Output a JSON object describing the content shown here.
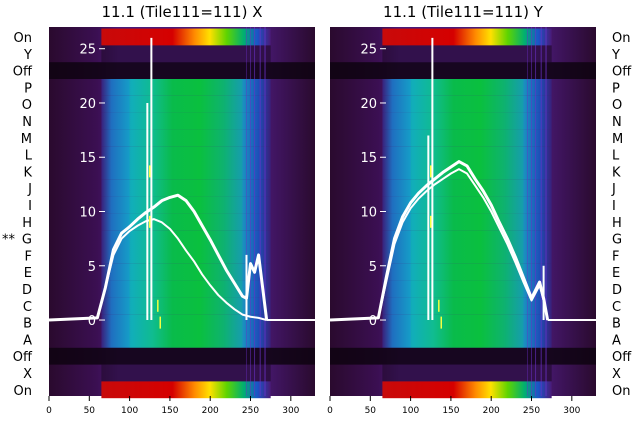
{
  "chart_data": [
    {
      "type": "heatmap",
      "title": "11.1 (Tile111=111) X",
      "row_labels": [
        "On",
        "Y",
        "Off",
        "P",
        "O",
        "N",
        "M",
        "L",
        "K",
        "J",
        "I",
        "H",
        "G",
        "F",
        "E",
        "D",
        "C",
        "B",
        "A",
        "Off",
        "X",
        "On"
      ],
      "marked_row": {
        "label": "G",
        "marker": "**"
      },
      "xlim": [
        0,
        330
      ],
      "x_ticks": [
        0,
        50,
        100,
        150,
        200,
        250,
        300
      ],
      "ylim": [
        -7,
        27
      ],
      "y_ticks": [
        0,
        5,
        10,
        15,
        20,
        25
      ],
      "colormap": "spectral (purple-blue-green-yellow-red)",
      "profile_color": "#ffffff",
      "series": [
        {
          "x": [
            0,
            60,
            70,
            80,
            90,
            100,
            110,
            120,
            130,
            140,
            150,
            160,
            170,
            180,
            190,
            200,
            210,
            220,
            230,
            240,
            245,
            250,
            255,
            260,
            265,
            270
          ],
          "y": [
            0,
            0.2,
            3,
            6.5,
            8,
            8.6,
            9.3,
            9.9,
            10.4,
            11,
            11.3,
            11.5,
            11,
            10,
            8.7,
            7.4,
            6,
            4.6,
            3.4,
            2.2,
            2,
            5.2,
            4.4,
            6,
            3,
            0
          ]
        },
        {
          "x": [
            0,
            60,
            70,
            80,
            90,
            100,
            110,
            120,
            130,
            140,
            150,
            160,
            170,
            180,
            190,
            200,
            210,
            220,
            230,
            240,
            250,
            260,
            270
          ],
          "y": [
            0,
            0.2,
            3,
            6,
            7.5,
            8.2,
            8.7,
            9.1,
            9.3,
            9,
            8.4,
            7.5,
            6.4,
            5.4,
            4.2,
            3.2,
            2.3,
            1.6,
            1,
            0.5,
            0.3,
            0.2,
            0
          ]
        }
      ],
      "spikes": [
        {
          "x": 122,
          "y": 20
        },
        {
          "x": 127,
          "y": 26
        },
        {
          "x": 245,
          "y": 6
        }
      ]
    },
    {
      "type": "heatmap",
      "title": "11.1 (Tile111=111) Y",
      "row_labels": [
        "On",
        "Y",
        "Off",
        "P",
        "O",
        "N",
        "M",
        "L",
        "K",
        "J",
        "I",
        "H",
        "G",
        "F",
        "E",
        "D",
        "C",
        "B",
        "A",
        "Off",
        "X",
        "On"
      ],
      "xlim": [
        0,
        330
      ],
      "x_ticks": [
        0,
        50,
        100,
        150,
        200,
        250,
        300
      ],
      "ylim": [
        -7,
        27
      ],
      "y_ticks": [
        0,
        5,
        10,
        15,
        20,
        25
      ],
      "colormap": "spectral (purple-blue-green-yellow-red)",
      "profile_color": "#ffffff",
      "series": [
        {
          "x": [
            0,
            60,
            70,
            80,
            90,
            100,
            110,
            120,
            130,
            140,
            150,
            160,
            170,
            180,
            190,
            200,
            210,
            220,
            230,
            240,
            250,
            260,
            265,
            270
          ],
          "y": [
            0,
            0.2,
            4,
            7.5,
            9.5,
            10.8,
            11.7,
            12.4,
            13,
            13.6,
            14.1,
            14.6,
            14.2,
            13,
            11.9,
            10.6,
            9,
            7.5,
            5.8,
            3.9,
            2,
            3.5,
            2,
            0
          ]
        },
        {
          "x": [
            0,
            60,
            70,
            80,
            90,
            100,
            110,
            120,
            130,
            140,
            150,
            160,
            170,
            180,
            190,
            200,
            210,
            220,
            230,
            240,
            250,
            260,
            265,
            270
          ],
          "y": [
            0,
            0.2,
            3.6,
            7,
            9,
            10.3,
            11.2,
            11.9,
            12.5,
            13,
            13.5,
            13.9,
            13.5,
            12.4,
            11.3,
            10,
            8.5,
            7,
            5.3,
            3.5,
            1.8,
            3.2,
            1.8,
            0
          ]
        }
      ],
      "spikes": [
        {
          "x": 122,
          "y": 17
        },
        {
          "x": 127,
          "y": 26
        },
        {
          "x": 265,
          "y": 5
        }
      ]
    }
  ]
}
